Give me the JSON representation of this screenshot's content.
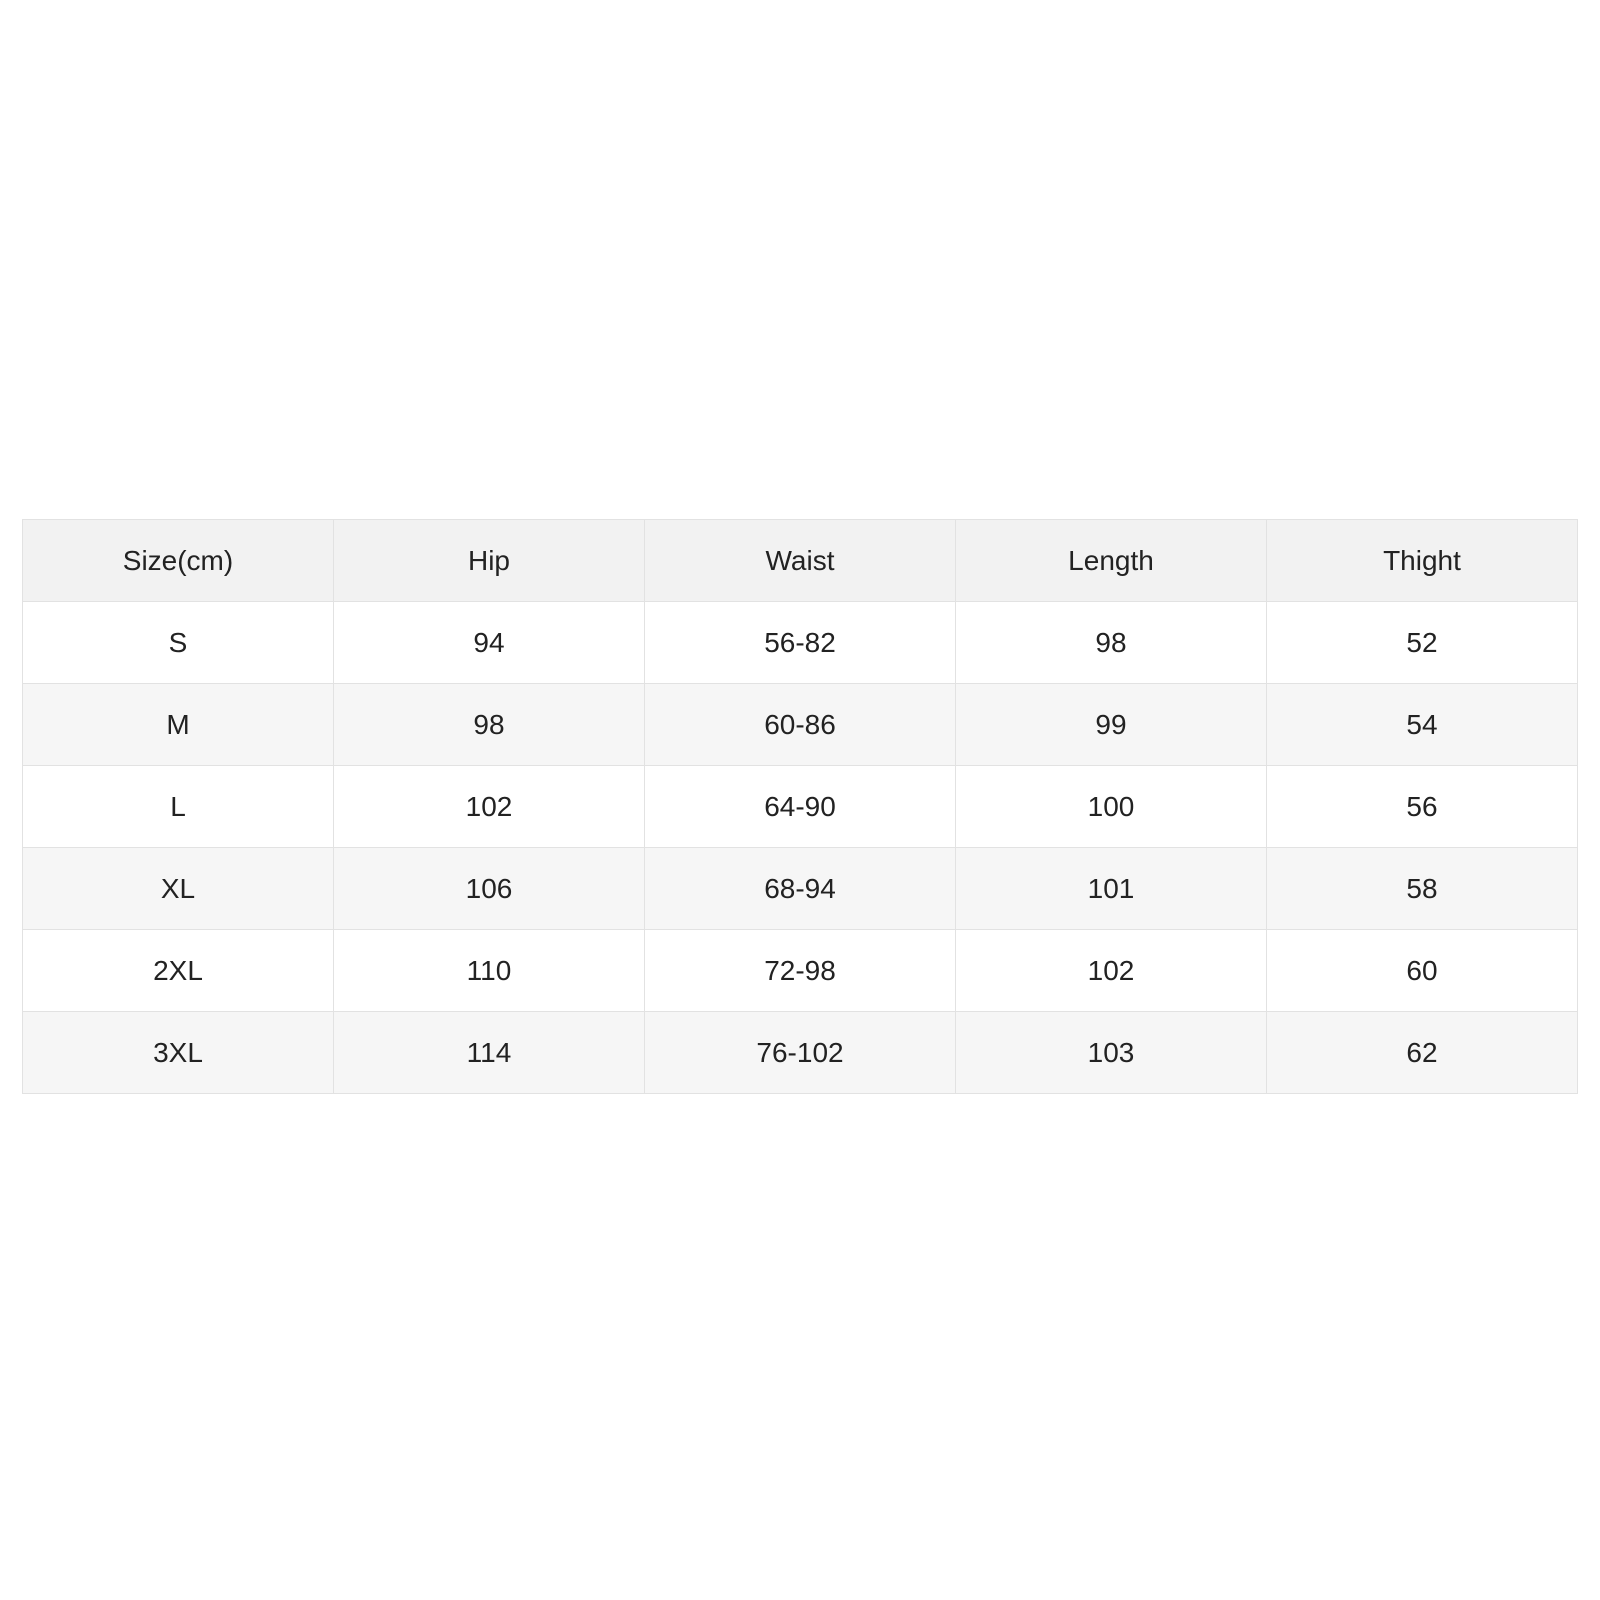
{
  "table": {
    "header": [
      "Size(cm)",
      "Hip",
      "Waist",
      "Length",
      "Thight"
    ],
    "rows": [
      [
        "S",
        94,
        "56-82",
        98,
        52
      ],
      [
        "M",
        98,
        "60-86",
        99,
        54
      ],
      [
        "L",
        102,
        "64-90",
        100,
        56
      ],
      [
        "XL",
        106,
        "68-94",
        101,
        58
      ],
      [
        "2XL",
        110,
        "72-98",
        102,
        60
      ],
      [
        "3XL",
        114,
        "76-102",
        103,
        62
      ]
    ]
  }
}
